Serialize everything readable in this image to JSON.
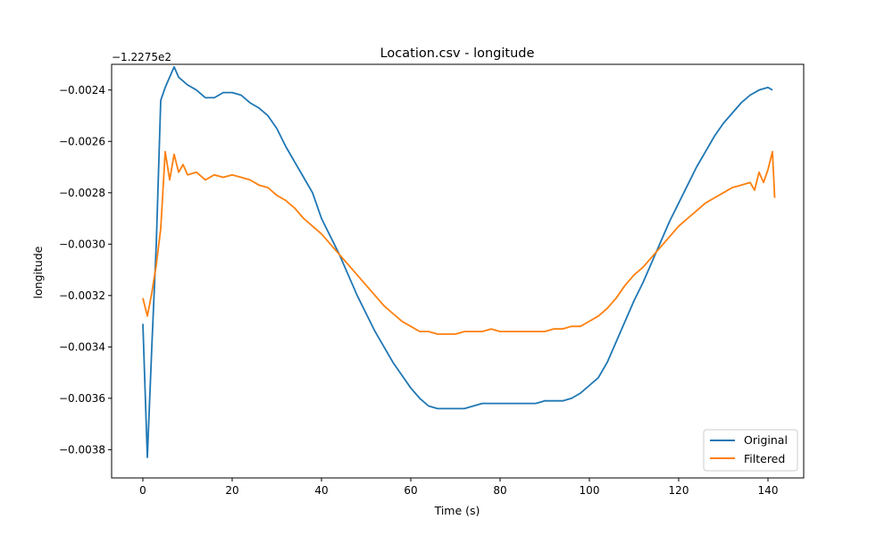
{
  "chart_data": {
    "type": "line",
    "title": "Location.csv - longitude",
    "xlabel": "Time (s)",
    "ylabel": "longitude",
    "offset_text": "−1.2275e2",
    "xlim": [
      -7,
      148
    ],
    "ylim": [
      -0.00391,
      -0.0023
    ],
    "xticks": [
      0,
      20,
      40,
      60,
      80,
      100,
      120,
      140
    ],
    "xtick_labels": [
      "0",
      "20",
      "40",
      "60",
      "80",
      "100",
      "120",
      "140"
    ],
    "yticks": [
      -0.0038,
      -0.0036,
      -0.0034,
      -0.0032,
      -0.003,
      -0.0028,
      -0.0026,
      -0.0024
    ],
    "ytick_labels": [
      "−0.0038",
      "−0.0036",
      "−0.0034",
      "−0.0032",
      "−0.0030",
      "−0.0028",
      "−0.0026",
      "−0.0024"
    ],
    "grid": false,
    "legend_position": "lower-right",
    "series": [
      {
        "name": "Original",
        "color": "#1f77b4",
        "points": [
          [
            0,
            -0.00331
          ],
          [
            1,
            -0.00383
          ],
          [
            2,
            -0.0034
          ],
          [
            3,
            -0.003
          ],
          [
            4,
            -0.00244
          ],
          [
            5,
            -0.00239
          ],
          [
            6,
            -0.00235
          ],
          [
            7,
            -0.00231
          ],
          [
            8,
            -0.00235
          ],
          [
            10,
            -0.00238
          ],
          [
            12,
            -0.0024
          ],
          [
            14,
            -0.00243
          ],
          [
            16,
            -0.00243
          ],
          [
            18,
            -0.00241
          ],
          [
            20,
            -0.00241
          ],
          [
            22,
            -0.00242
          ],
          [
            24,
            -0.00245
          ],
          [
            26,
            -0.00247
          ],
          [
            28,
            -0.0025
          ],
          [
            30,
            -0.00255
          ],
          [
            32,
            -0.00262
          ],
          [
            34,
            -0.00268
          ],
          [
            36,
            -0.00274
          ],
          [
            38,
            -0.0028
          ],
          [
            40,
            -0.0029
          ],
          [
            42,
            -0.00297
          ],
          [
            44,
            -0.00304
          ],
          [
            46,
            -0.00312
          ],
          [
            48,
            -0.0032
          ],
          [
            50,
            -0.00327
          ],
          [
            52,
            -0.00334
          ],
          [
            54,
            -0.0034
          ],
          [
            56,
            -0.00346
          ],
          [
            58,
            -0.00351
          ],
          [
            60,
            -0.00356
          ],
          [
            62,
            -0.0036
          ],
          [
            64,
            -0.00363
          ],
          [
            66,
            -0.00364
          ],
          [
            68,
            -0.00364
          ],
          [
            70,
            -0.00364
          ],
          [
            72,
            -0.00364
          ],
          [
            74,
            -0.00363
          ],
          [
            76,
            -0.00362
          ],
          [
            78,
            -0.00362
          ],
          [
            80,
            -0.00362
          ],
          [
            82,
            -0.00362
          ],
          [
            84,
            -0.00362
          ],
          [
            86,
            -0.00362
          ],
          [
            88,
            -0.00362
          ],
          [
            90,
            -0.00361
          ],
          [
            92,
            -0.00361
          ],
          [
            94,
            -0.00361
          ],
          [
            96,
            -0.0036
          ],
          [
            98,
            -0.00358
          ],
          [
            100,
            -0.00355
          ],
          [
            102,
            -0.00352
          ],
          [
            104,
            -0.00346
          ],
          [
            106,
            -0.00338
          ],
          [
            108,
            -0.0033
          ],
          [
            110,
            -0.00322
          ],
          [
            112,
            -0.00315
          ],
          [
            114,
            -0.00307
          ],
          [
            116,
            -0.00299
          ],
          [
            118,
            -0.00291
          ],
          [
            120,
            -0.00284
          ],
          [
            122,
            -0.00277
          ],
          [
            124,
            -0.0027
          ],
          [
            126,
            -0.00264
          ],
          [
            128,
            -0.00258
          ],
          [
            130,
            -0.00253
          ],
          [
            132,
            -0.00249
          ],
          [
            134,
            -0.00245
          ],
          [
            136,
            -0.00242
          ],
          [
            138,
            -0.0024
          ],
          [
            140,
            -0.00239
          ],
          [
            141,
            -0.0024
          ]
        ]
      },
      {
        "name": "Filtered",
        "color": "#ff7f0e",
        "points": [
          [
            0,
            -0.00321
          ],
          [
            1,
            -0.00328
          ],
          [
            2,
            -0.00319
          ],
          [
            3,
            -0.00308
          ],
          [
            4,
            -0.00294
          ],
          [
            5,
            -0.00264
          ],
          [
            6,
            -0.00275
          ],
          [
            7,
            -0.00265
          ],
          [
            8,
            -0.00272
          ],
          [
            9,
            -0.00269
          ],
          [
            10,
            -0.00273
          ],
          [
            12,
            -0.00272
          ],
          [
            14,
            -0.00275
          ],
          [
            16,
            -0.00273
          ],
          [
            18,
            -0.00274
          ],
          [
            20,
            -0.00273
          ],
          [
            22,
            -0.00274
          ],
          [
            24,
            -0.00275
          ],
          [
            26,
            -0.00277
          ],
          [
            28,
            -0.00278
          ],
          [
            30,
            -0.00281
          ],
          [
            32,
            -0.00283
          ],
          [
            34,
            -0.00286
          ],
          [
            36,
            -0.0029
          ],
          [
            38,
            -0.00293
          ],
          [
            40,
            -0.00296
          ],
          [
            42,
            -0.003
          ],
          [
            44,
            -0.00304
          ],
          [
            46,
            -0.00308
          ],
          [
            48,
            -0.00312
          ],
          [
            50,
            -0.00316
          ],
          [
            52,
            -0.0032
          ],
          [
            54,
            -0.00324
          ],
          [
            56,
            -0.00327
          ],
          [
            58,
            -0.0033
          ],
          [
            60,
            -0.00332
          ],
          [
            62,
            -0.00334
          ],
          [
            64,
            -0.00334
          ],
          [
            66,
            -0.00335
          ],
          [
            68,
            -0.00335
          ],
          [
            70,
            -0.00335
          ],
          [
            72,
            -0.00334
          ],
          [
            74,
            -0.00334
          ],
          [
            76,
            -0.00334
          ],
          [
            78,
            -0.00333
          ],
          [
            80,
            -0.00334
          ],
          [
            82,
            -0.00334
          ],
          [
            84,
            -0.00334
          ],
          [
            86,
            -0.00334
          ],
          [
            88,
            -0.00334
          ],
          [
            90,
            -0.00334
          ],
          [
            92,
            -0.00333
          ],
          [
            94,
            -0.00333
          ],
          [
            96,
            -0.00332
          ],
          [
            98,
            -0.00332
          ],
          [
            100,
            -0.0033
          ],
          [
            102,
            -0.00328
          ],
          [
            104,
            -0.00325
          ],
          [
            106,
            -0.00321
          ],
          [
            108,
            -0.00316
          ],
          [
            110,
            -0.00312
          ],
          [
            112,
            -0.00309
          ],
          [
            114,
            -0.00305
          ],
          [
            116,
            -0.00301
          ],
          [
            118,
            -0.00297
          ],
          [
            120,
            -0.00293
          ],
          [
            122,
            -0.0029
          ],
          [
            124,
            -0.00287
          ],
          [
            126,
            -0.00284
          ],
          [
            128,
            -0.00282
          ],
          [
            130,
            -0.0028
          ],
          [
            132,
            -0.00278
          ],
          [
            134,
            -0.00277
          ],
          [
            136,
            -0.00276
          ],
          [
            137,
            -0.00279
          ],
          [
            138,
            -0.00272
          ],
          [
            139,
            -0.00276
          ],
          [
            140,
            -0.00271
          ],
          [
            141,
            -0.00264
          ],
          [
            141.5,
            -0.00282
          ]
        ]
      }
    ]
  }
}
